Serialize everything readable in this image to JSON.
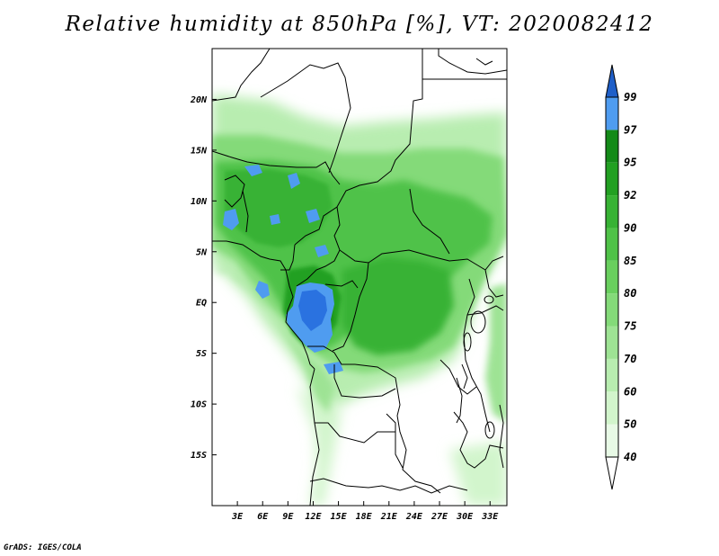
{
  "title": "Relative humidity at 850hPa [%], VT: 2020082412",
  "credit": "GrADS: IGES/COLA",
  "map": {
    "lat_range": [
      -20,
      25
    ],
    "lon_range": [
      0,
      35
    ],
    "lat_labels": [
      {
        "lat": 20,
        "text": "20N"
      },
      {
        "lat": 15,
        "text": "15N"
      },
      {
        "lat": 10,
        "text": "10N"
      },
      {
        "lat": 5,
        "text": "5N"
      },
      {
        "lat": 0,
        "text": "EQ"
      },
      {
        "lat": -5,
        "text": "5S"
      },
      {
        "lat": -10,
        "text": "10S"
      },
      {
        "lat": -15,
        "text": "15S"
      }
    ],
    "lon_labels": [
      {
        "lon": 3,
        "text": "3E"
      },
      {
        "lon": 6,
        "text": "6E"
      },
      {
        "lon": 9,
        "text": "9E"
      },
      {
        "lon": 12,
        "text": "12E"
      },
      {
        "lon": 15,
        "text": "15E"
      },
      {
        "lon": 18,
        "text": "18E"
      },
      {
        "lon": 21,
        "text": "21E"
      },
      {
        "lon": 24,
        "text": "24E"
      },
      {
        "lon": 27,
        "text": "27E"
      },
      {
        "lon": 30,
        "text": "30E"
      },
      {
        "lon": 33,
        "text": "33E"
      }
    ]
  },
  "colorbar": {
    "levels": [
      {
        "value": "40",
        "color": "#e8fae6"
      },
      {
        "value": "50",
        "color": "#d2f5cc"
      },
      {
        "value": "60",
        "color": "#b8edb0"
      },
      {
        "value": "70",
        "color": "#9ee394"
      },
      {
        "value": "75",
        "color": "#84da79"
      },
      {
        "value": "80",
        "color": "#69cf5e"
      },
      {
        "value": "85",
        "color": "#4fc248"
      },
      {
        "value": "90",
        "color": "#37b234"
      },
      {
        "value": "92",
        "color": "#22a022"
      },
      {
        "value": "95",
        "color": "#148a18"
      },
      {
        "value": "97",
        "color": "#4f9cf0"
      },
      {
        "value": "99",
        "color": "#2a72e0"
      }
    ],
    "below_color": "#ffffff",
    "above_color": "#1f5fc8"
  }
}
